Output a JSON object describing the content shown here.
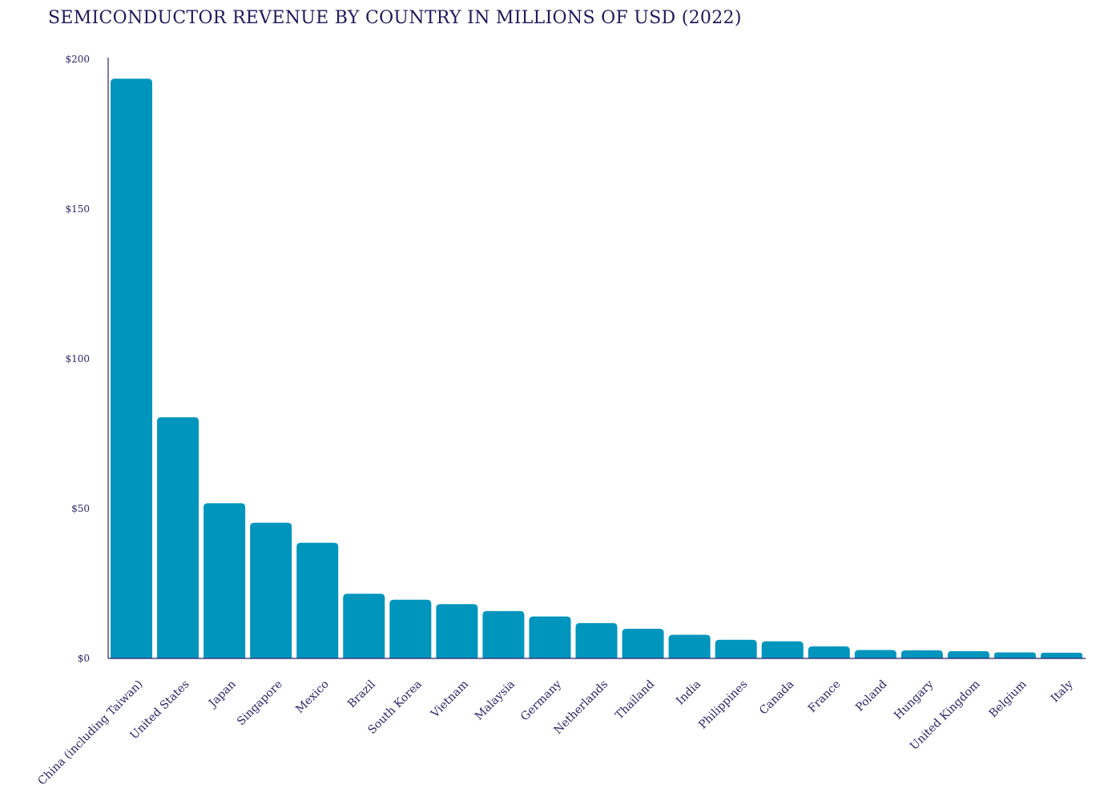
{
  "chart_data": {
    "type": "bar",
    "title": "SEMICONDUCTOR REVENUE BY COUNTRY IN MILLIONS OF USD (2022)",
    "xlabel": "",
    "ylabel": "",
    "ylim": [
      0,
      200
    ],
    "yticks": [
      {
        "value": 0,
        "label": "$0"
      },
      {
        "value": 50,
        "label": "$50"
      },
      {
        "value": 100,
        "label": "$100"
      },
      {
        "value": 150,
        "label": "$150"
      },
      {
        "value": 200,
        "label": "$200"
      }
    ],
    "categories": [
      "China (including Taiwan)",
      "United States",
      "Japan",
      "Singapore",
      "Mexico",
      "Brazil",
      "South Korea",
      "Vietnam",
      "Malaysia",
      "Germany",
      "Netherlands",
      "Thailand",
      "India",
      "Philippines",
      "Canada",
      "France",
      "Poland",
      "Hungary",
      "United Kingdom",
      "Belgium",
      "Italy"
    ],
    "values": [
      193.5,
      80.5,
      51.8,
      45.3,
      38.6,
      21.6,
      19.6,
      18.1,
      15.8,
      14.0,
      11.8,
      9.9,
      7.9,
      6.2,
      5.7,
      4.0,
      2.8,
      2.7,
      2.4,
      2.0,
      1.9
    ],
    "grid": false,
    "legend": "none",
    "colors": {
      "bar": "#0095bd",
      "axis": "#2b2569",
      "text": "#2b2569",
      "title": "#1f1a5a"
    }
  }
}
